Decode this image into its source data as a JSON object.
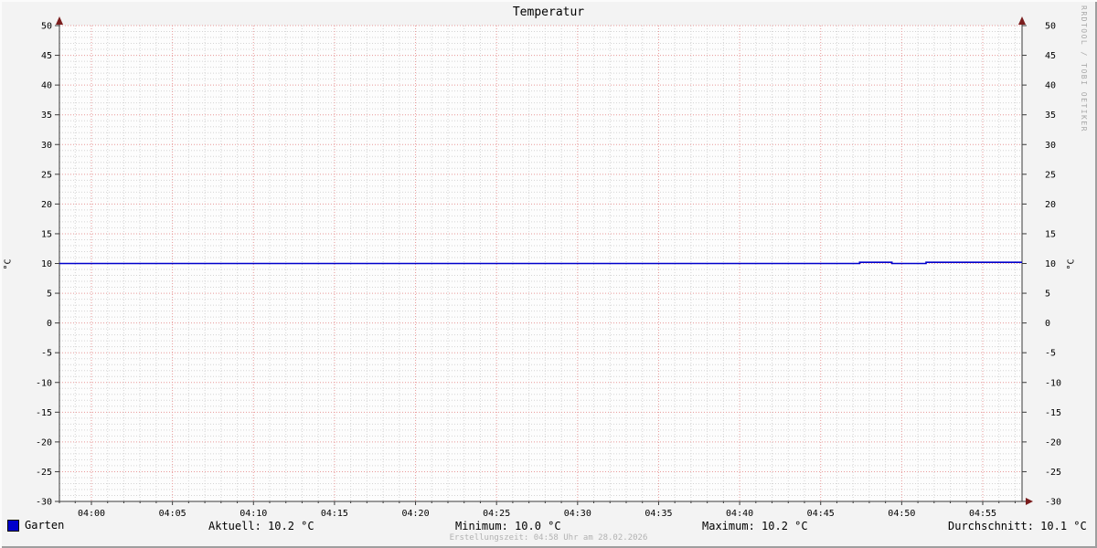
{
  "title": "Temperatur",
  "watermark": "RRDTOOL / TOBI OETIKER",
  "axis_units": {
    "left": "°C",
    "right": "°C"
  },
  "legend": {
    "series_label": "Garten",
    "swatch_color": "#0000cc"
  },
  "stats": [
    {
      "key": "aktuell",
      "label": "Aktuell:",
      "value": "10.2 °C"
    },
    {
      "key": "minimum",
      "label": "Minimum:",
      "value": "10.0 °C"
    },
    {
      "key": "maximum",
      "label": "Maximum:",
      "value": "10.2 °C"
    },
    {
      "key": "durchschnitt",
      "label": "Durchschnitt:",
      "value": "10.1 °C"
    }
  ],
  "footer": {
    "creation_note": "Erstellungszeit: 04:58 Uhr am 28.02.2026"
  },
  "chart_data": {
    "type": "line",
    "title": "Temperatur",
    "ylabel": "°C",
    "ylim": [
      -30,
      50
    ],
    "y_tick_step": 5,
    "y_minor_step": 1,
    "x_tick_labels": [
      "04:00",
      "04:05",
      "04:10",
      "04:15",
      "04:20",
      "04:25",
      "04:30",
      "04:35",
      "04:40",
      "04:45",
      "04:50",
      "04:55"
    ],
    "x_tick_interval_min": 5,
    "x_minor_interval_min": 1,
    "x_range_minutes": [
      -2,
      57.5
    ],
    "grid_on": true,
    "legend_position": "bottom-left",
    "colors": {
      "major_grid": "#e89898",
      "minor_grid": "#d4d4d4",
      "axis": "#3a3a3a",
      "arrow": "#7a1d1d",
      "canvas": "#fdfdfd"
    },
    "series": [
      {
        "name": "Garten",
        "color": "#0000cc",
        "points_min_val": [
          [
            -2,
            10.0
          ],
          [
            47.4,
            10.0
          ],
          [
            47.4,
            10.2
          ],
          [
            49.4,
            10.2
          ],
          [
            49.4,
            10.0
          ],
          [
            51.5,
            10.0
          ],
          [
            51.5,
            10.2
          ],
          [
            57.5,
            10.2
          ]
        ]
      }
    ],
    "stats": {
      "aktuell": "10.2 °C",
      "minimum": "10.0 °C",
      "maximum": "10.2 °C",
      "durchschnitt": "10.1 °C"
    }
  }
}
